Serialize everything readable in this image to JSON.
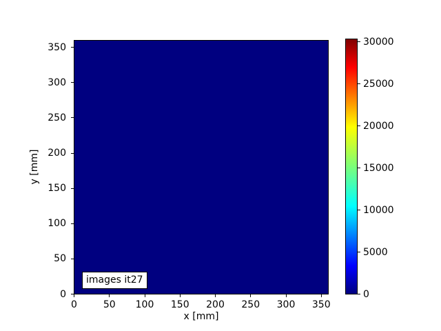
{
  "chart_data": {
    "type": "heatmap",
    "title": "",
    "xlabel": "x [mm]",
    "ylabel": "y [mm]",
    "x_range": [
      0,
      360
    ],
    "y_range": [
      0,
      360
    ],
    "x_ticks": [
      0,
      50,
      100,
      150,
      200,
      250,
      300,
      350
    ],
    "y_ticks": [
      0,
      50,
      100,
      150,
      200,
      250,
      300,
      350
    ],
    "grid": false,
    "legend": false,
    "annotation": "images it27",
    "heatmap": {
      "uniform_value": 0,
      "rendered_color": "#000080",
      "colormap": "jet"
    },
    "colorbar": {
      "position": "right",
      "ticks": [
        0,
        5000,
        10000,
        15000,
        20000,
        25000,
        30000
      ],
      "tick_min": 0,
      "tick_max": 30000,
      "gradient_stops": [
        {
          "pos": 0.0,
          "color": "#000080"
        },
        {
          "pos": 0.11,
          "color": "#0000ff"
        },
        {
          "pos": 0.345,
          "color": "#00ffff"
        },
        {
          "pos": 0.5,
          "color": "#7cff79"
        },
        {
          "pos": 0.655,
          "color": "#ffff00"
        },
        {
          "pos": 0.89,
          "color": "#ff0000"
        },
        {
          "pos": 1.0,
          "color": "#800000"
        }
      ]
    }
  }
}
